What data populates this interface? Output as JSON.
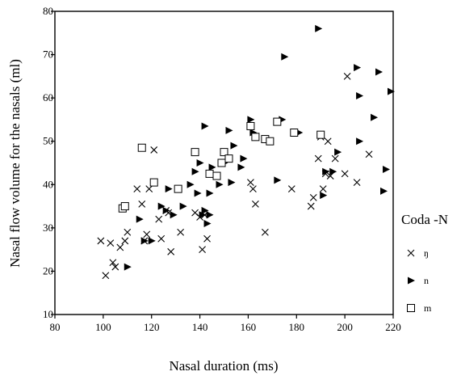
{
  "chart_data": {
    "type": "scatter",
    "xlabel": "Nasal duration (ms)",
    "ylabel": "Nasal flow volume for the nasals (ml)",
    "xlim": [
      80,
      220
    ],
    "ylim": [
      10,
      80
    ],
    "x_ticks": [
      80,
      100,
      120,
      140,
      160,
      180,
      200,
      220
    ],
    "y_ticks": [
      10,
      20,
      30,
      40,
      50,
      60,
      70,
      80
    ],
    "x_tick_labels": [
      "80",
      "100",
      "120",
      "140",
      "160",
      "180",
      "200",
      "220"
    ],
    "y_tick_labels": [
      "10",
      "20",
      "30",
      "40",
      "50",
      "60",
      "70",
      "80"
    ],
    "grid": false,
    "legend": {
      "title": "Coda -N",
      "placement": "right",
      "entries": [
        {
          "label": "ŋ",
          "marker": "x"
        },
        {
          "label": "n",
          "marker": "triangle-right"
        },
        {
          "label": "m",
          "marker": "square-open"
        }
      ]
    },
    "series": [
      {
        "name": "ŋ",
        "marker": "x",
        "points": [
          [
            99,
            27
          ],
          [
            101,
            19
          ],
          [
            103,
            26.5
          ],
          [
            104,
            22
          ],
          [
            105,
            21
          ],
          [
            107,
            25.5
          ],
          [
            109,
            27
          ],
          [
            110,
            29
          ],
          [
            114,
            39
          ],
          [
            116,
            35.5
          ],
          [
            117,
            27
          ],
          [
            118,
            28.5
          ],
          [
            119,
            39
          ],
          [
            121,
            48
          ],
          [
            123,
            32
          ],
          [
            124,
            27.5
          ],
          [
            126,
            34
          ],
          [
            127,
            33.5
          ],
          [
            128,
            24.5
          ],
          [
            132,
            29
          ],
          [
            138,
            33.5
          ],
          [
            140,
            32.5
          ],
          [
            141,
            25
          ],
          [
            142,
            33
          ],
          [
            143,
            27.5
          ],
          [
            161,
            40.5
          ],
          [
            162,
            39
          ],
          [
            163,
            35.5
          ],
          [
            167,
            29
          ],
          [
            178,
            39
          ],
          [
            186,
            35
          ],
          [
            187,
            37
          ],
          [
            189,
            46
          ],
          [
            190,
            51
          ],
          [
            191,
            39
          ],
          [
            192,
            42.5
          ],
          [
            193,
            50
          ],
          [
            194,
            42
          ],
          [
            196,
            46
          ],
          [
            200,
            42.5
          ],
          [
            201,
            65
          ],
          [
            205,
            40.5
          ],
          [
            210,
            47
          ]
        ]
      },
      {
        "name": "n",
        "marker": "triangle-right",
        "points": [
          [
            110,
            21
          ],
          [
            115,
            32
          ],
          [
            117,
            27
          ],
          [
            120,
            27
          ],
          [
            124,
            35
          ],
          [
            126,
            34
          ],
          [
            127,
            39
          ],
          [
            129,
            33
          ],
          [
            133,
            35
          ],
          [
            136,
            40
          ],
          [
            138,
            43
          ],
          [
            139,
            38
          ],
          [
            140,
            45
          ],
          [
            141,
            33
          ],
          [
            142,
            53.5
          ],
          [
            142,
            34
          ],
          [
            143,
            31
          ],
          [
            144,
            33
          ],
          [
            144,
            38
          ],
          [
            145,
            44
          ],
          [
            148,
            40
          ],
          [
            150,
            45
          ],
          [
            152,
            52.5
          ],
          [
            153,
            40.5
          ],
          [
            154,
            49
          ],
          [
            157,
            44
          ],
          [
            158,
            46
          ],
          [
            161,
            55
          ],
          [
            162,
            52
          ],
          [
            172,
            41
          ],
          [
            174,
            55
          ],
          [
            175,
            69.5
          ],
          [
            181,
            52
          ],
          [
            189,
            76
          ],
          [
            191,
            37.5
          ],
          [
            192,
            43
          ],
          [
            195,
            43
          ],
          [
            197,
            47.5
          ],
          [
            205,
            67
          ],
          [
            206,
            50
          ],
          [
            206,
            60.5
          ],
          [
            212,
            55.5
          ],
          [
            214,
            66
          ],
          [
            216,
            38.5
          ],
          [
            217,
            43.5
          ],
          [
            219,
            61.5
          ]
        ]
      },
      {
        "name": "m",
        "marker": "square-open",
        "points": [
          [
            108,
            34.5
          ],
          [
            109,
            35
          ],
          [
            116,
            48.5
          ],
          [
            121,
            40.5
          ],
          [
            131,
            39
          ],
          [
            138,
            47.5
          ],
          [
            144,
            42.5
          ],
          [
            147,
            42
          ],
          [
            149,
            45
          ],
          [
            150,
            47.5
          ],
          [
            152,
            46
          ],
          [
            161,
            53.5
          ],
          [
            163,
            51
          ],
          [
            167,
            50.5
          ],
          [
            169,
            50
          ],
          [
            172,
            54.5
          ],
          [
            179,
            52
          ],
          [
            190,
            51.5
          ]
        ]
      }
    ]
  }
}
